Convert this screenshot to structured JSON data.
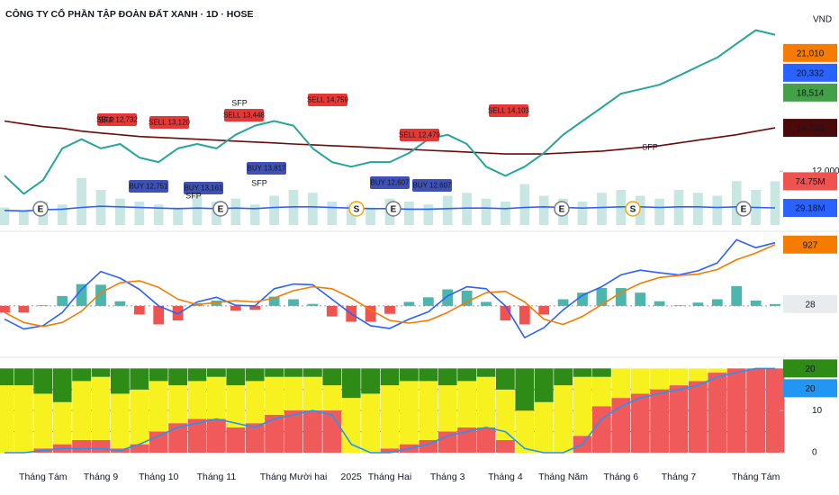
{
  "chart_data": [
    {
      "type": "line",
      "title": "CÔNG TY CỔ PHẦN TẬP ĐOÀN ĐẤT XANH · 1D · HOSE",
      "unit": "VND",
      "log_scale": true,
      "ylim": [
        9300,
        27000
      ],
      "yticks": [
        {
          "value": 12000,
          "label": "12,000"
        }
      ],
      "y2lim": [
        0,
        100
      ],
      "categories": [
        null,
        null,
        "Tháng Tám",
        null,
        null,
        "Tháng 9",
        null,
        null,
        "Tháng 10",
        null,
        null,
        "Tháng 11",
        null,
        null,
        null,
        "Tháng Mười hai",
        null,
        null,
        "2025",
        null,
        "Tháng Hai",
        null,
        null,
        "Tháng 3",
        null,
        null,
        "Tháng 4",
        null,
        null,
        "Tháng Năm",
        null,
        null,
        "Tháng 6",
        null,
        null,
        "Tháng 7",
        null,
        null,
        null,
        "Tháng Tám",
        null
      ],
      "series": [
        {
          "type": "bar",
          "axis": "y2",
          "color": "#c8e6e2",
          "values": [
            30,
            25,
            40,
            35,
            80,
            60,
            45,
            40,
            35,
            30,
            50,
            40,
            45,
            35,
            50,
            60,
            55,
            40,
            35,
            30,
            45,
            40,
            35,
            50,
            55,
            45,
            40,
            70,
            50,
            45,
            40,
            55,
            60,
            50,
            45,
            60,
            55,
            50,
            75,
            60,
            74.75
          ]
        },
        {
          "type": "line",
          "axis": "y2",
          "color": "#2962ff",
          "values": [
            25,
            24,
            26,
            27,
            30,
            32,
            31,
            30,
            29,
            28,
            29,
            28,
            29,
            28,
            30,
            31,
            31,
            30,
            29,
            28,
            28,
            27,
            27,
            28,
            29,
            29,
            28,
            30,
            31,
            30,
            29,
            30,
            31,
            31,
            30,
            31,
            31,
            30,
            31,
            30,
            29.18
          ]
        },
        {
          "type": "line",
          "color": "#6d0a0a",
          "values": [
            15220,
            15010,
            14820,
            14700,
            14510,
            14380,
            14260,
            14140,
            14080,
            14020,
            13960,
            13900,
            13840,
            13780,
            13720,
            13650,
            13600,
            13540,
            13490,
            13430,
            13370,
            13310,
            13250,
            13200,
            13140,
            13080,
            13020,
            13020,
            13020,
            13080,
            13140,
            13200,
            13310,
            13430,
            13540,
            13720,
            13900,
            14080,
            14260,
            14500,
            14733
          ]
        },
        {
          "type": "line",
          "color": "#26a69a",
          "values": [
            11750,
            10780,
            11500,
            13370,
            13960,
            13370,
            13650,
            12800,
            12530,
            13370,
            13650,
            13370,
            14260,
            14890,
            15220,
            14890,
            13370,
            12530,
            12260,
            12530,
            12530,
            13080,
            13960,
            14260,
            13650,
            12260,
            11740,
            12260,
            13080,
            14260,
            15220,
            16220,
            17320,
            17690,
            18070,
            18860,
            19700,
            20560,
            21950,
            23410,
            22900
          ]
        }
      ],
      "markers": [
        {
          "value": 21010,
          "label": "21,010",
          "color": "#f57c00"
        },
        {
          "value": 20332,
          "label": "20,332",
          "color": "#2962ff"
        },
        {
          "value": 18514,
          "label": "18,514",
          "color": "#43a047"
        },
        {
          "value": 14733,
          "label": "14,733",
          "color": "#4a0a0a"
        }
      ],
      "y2markers": [
        {
          "value": 29.18,
          "label": "29.18M",
          "color": "#2962ff"
        },
        {
          "value": 74.75,
          "label": "74.75M",
          "color": "#ef5350"
        }
      ],
      "signals": [
        "SELL 12,732",
        "SELL 13,120",
        "SELL 13,448",
        "SELL 14,759",
        "SELL 12,479",
        "SELL 14,103",
        "BUY 12,751",
        "BUY 13,161",
        "BUY 13,817",
        "BUY 12,607",
        "BUY 12,607"
      ],
      "sfp": [
        "SFP",
        "SFP",
        "SFP",
        "SFP",
        "SFP"
      ],
      "events": [
        "E",
        "E",
        "S",
        "E",
        "E",
        "S",
        "E"
      ]
    },
    {
      "type": "line",
      "ylim": [
        -750,
        1060
      ],
      "hlines": [
        0
      ],
      "series": [
        {
          "type": "bar",
          "colors": [
            "#4db6ac",
            "#ef5350"
          ],
          "values": [
            -100,
            -100,
            10,
            150,
            330,
            320,
            70,
            -130,
            -280,
            -220,
            40,
            80,
            -70,
            -60,
            140,
            100,
            30,
            -160,
            -240,
            -240,
            -120,
            60,
            130,
            250,
            230,
            60,
            -220,
            -280,
            -130,
            100,
            200,
            270,
            270,
            200,
            70,
            10,
            50,
            100,
            300,
            80,
            28
          ]
        },
        {
          "type": "line",
          "color": "#2962ff",
          "values": [
            -200,
            -350,
            -300,
            -100,
            250,
            520,
            420,
            250,
            0,
            -120,
            60,
            130,
            10,
            0,
            260,
            330,
            320,
            100,
            -120,
            -300,
            -340,
            -200,
            -90,
            150,
            290,
            260,
            0,
            -480,
            -330,
            -60,
            160,
            290,
            470,
            540,
            500,
            470,
            530,
            650,
            1000,
            880,
            955
          ]
        },
        {
          "type": "line",
          "color": "#f57c00",
          "values": [
            -100,
            -250,
            -310,
            -250,
            -80,
            200,
            350,
            380,
            280,
            100,
            20,
            50,
            80,
            60,
            120,
            230,
            290,
            260,
            120,
            -60,
            -220,
            -260,
            -220,
            -100,
            60,
            200,
            220,
            60,
            -200,
            -280,
            -160,
            20,
            200,
            340,
            430,
            460,
            480,
            550,
            700,
            800,
            927
          ]
        }
      ],
      "markers": [
        {
          "value": 927,
          "color": "#f57c00"
        },
        {
          "value": 28,
          "color": "#e8ecef"
        }
      ]
    },
    {
      "type": "bar",
      "stacked": true,
      "ylim": [
        -1.5,
        22
      ],
      "yticks": [
        0,
        10
      ],
      "hlines": [
        5,
        10,
        15
      ],
      "series": [
        {
          "type": "bar",
          "color": "#f05a5a",
          "values": [
            0,
            0,
            1,
            2,
            3,
            3,
            1,
            2,
            5,
            7,
            8,
            8,
            6,
            7,
            9,
            10,
            10,
            10,
            0,
            0,
            1,
            2,
            3,
            5,
            6,
            6,
            3,
            0,
            0,
            0,
            4,
            11,
            13,
            14,
            15,
            16,
            17,
            19,
            20,
            20,
            20
          ]
        },
        {
          "type": "bar",
          "color": "#f7f21f",
          "values": [
            16,
            16,
            13,
            10,
            14,
            15,
            13,
            13,
            12,
            9,
            9,
            10,
            10,
            10,
            9,
            8,
            8,
            6,
            13,
            14,
            15,
            15,
            14,
            11,
            11,
            12,
            12,
            10,
            12,
            16,
            14,
            7,
            7,
            6,
            5,
            4,
            3,
            1,
            0,
            0,
            0
          ]
        },
        {
          "type": "bar",
          "color": "#2e8b16",
          "values": [
            4,
            4,
            6,
            8,
            3,
            2,
            6,
            5,
            3,
            4,
            3,
            2,
            4,
            3,
            2,
            2,
            2,
            4,
            7,
            6,
            4,
            3,
            3,
            4,
            3,
            2,
            5,
            10,
            8,
            4,
            2,
            2,
            0,
            0,
            0,
            0,
            0,
            0,
            0,
            0,
            0
          ]
        },
        {
          "type": "line",
          "color": "#2196f3",
          "values": [
            0,
            0,
            0.5,
            1,
            1,
            1,
            0.5,
            2,
            4,
            6,
            7,
            8,
            7,
            6,
            8,
            9,
            10,
            9,
            2,
            0,
            0,
            1,
            2,
            4,
            5,
            6,
            5,
            1,
            0,
            0,
            2,
            8,
            11,
            13,
            14,
            15,
            16,
            18,
            19,
            20,
            20
          ]
        }
      ],
      "markers": [
        {
          "value": 20,
          "color": "#2e8b16"
        },
        {
          "value": 20,
          "color": "#2196f3"
        }
      ]
    }
  ]
}
